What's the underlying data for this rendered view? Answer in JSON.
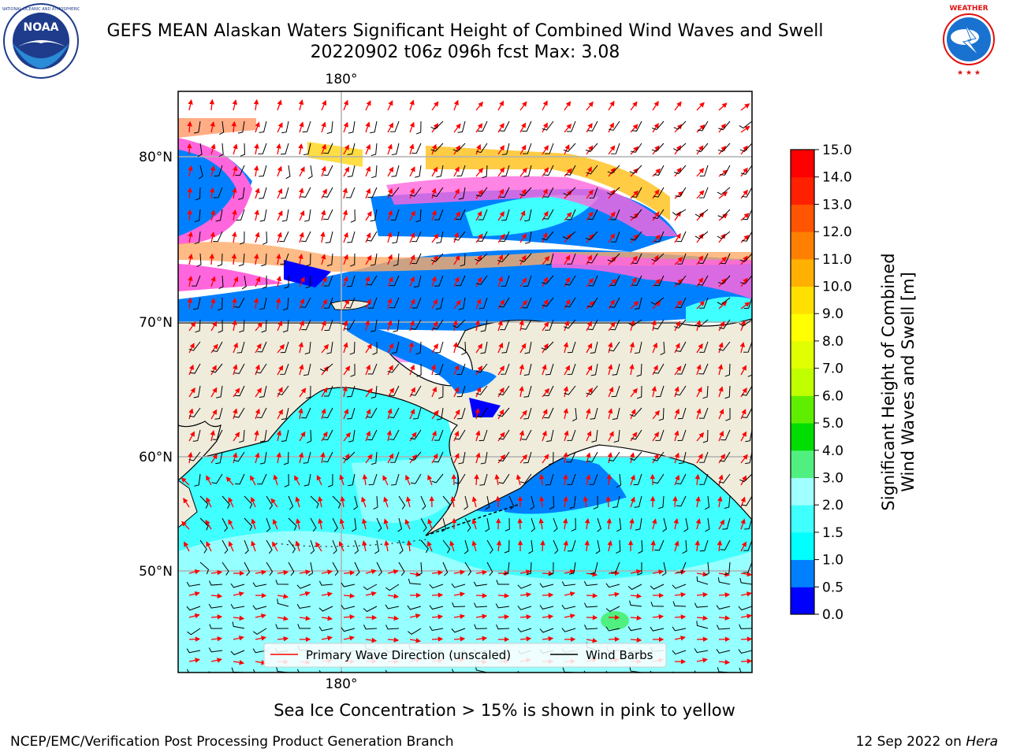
{
  "title": {
    "line1": "GEFS MEAN Alaskan Waters Significant Height of Combined Wind Waves and Swell",
    "line2": "20220902 t06z 096h fcst   Max: 3.08"
  },
  "logos": {
    "left": {
      "text": "NOAA",
      "ring_text": "NATIONAL OCEANIC AND ATMOSPHERIC ADMINISTRATION · U.S. DEPARTMENT OF COMMERCE"
    },
    "right": {
      "ring_text": "NATIONAL WEATHER SERVICE"
    }
  },
  "map": {
    "lon_label_top": "180°",
    "lon_label_bottom": "180°",
    "lat_labels": [
      "80°N",
      "70°N",
      "60°N",
      "50°N"
    ],
    "legend": {
      "wave_dir": "Primary Wave Direction (unscaled)",
      "wind_barbs": "Wind Barbs"
    },
    "colors": {
      "land": "#efecdc",
      "coast": "#000000",
      "arrow": "#ff0000",
      "grid": "#b0b0b0"
    }
  },
  "colorbar": {
    "label_line1": "Significant Height of Combined",
    "label_line2": "Wind Waves and Swell [m]",
    "ticks": [
      "0.0",
      "0.5",
      "1.0",
      "1.5",
      "2.0",
      "3.0",
      "4.0",
      "5.0",
      "6.0",
      "7.0",
      "8.0",
      "9.0",
      "10.0",
      "11.0",
      "12.0",
      "13.0",
      "14.0",
      "15.0"
    ],
    "colors": [
      "#0000ff",
      "#0080ff",
      "#00ffff",
      "#40ffff",
      "#a0ffff",
      "#50f080",
      "#00dd00",
      "#60ee00",
      "#c0ff00",
      "#e0ff00",
      "#ffff00",
      "#ffe000",
      "#ffb000",
      "#ff8000",
      "#ff5500",
      "#ff2000",
      "#ff0000"
    ]
  },
  "subtitle": "Sea Ice Concentration > 15% is shown in pink to yellow",
  "footer": {
    "left": "NCEP/EMC/Verification Post Processing Product Generation Branch",
    "right_date": "12 Sep 2022 on ",
    "right_host": "Hera"
  }
}
